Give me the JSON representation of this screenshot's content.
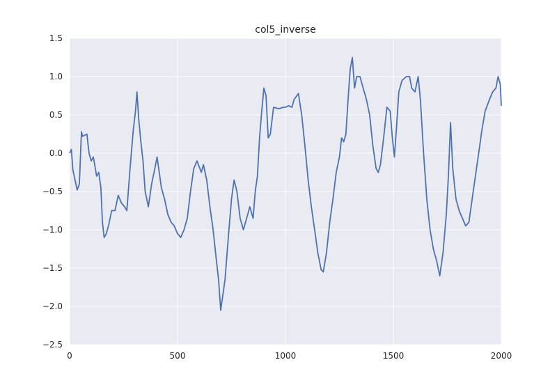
{
  "chart_data": {
    "type": "line",
    "title": "col5_inverse",
    "xlabel": "",
    "ylabel": "",
    "xlim": [
      0,
      2000
    ],
    "ylim": [
      -2.5,
      1.5
    ],
    "xticks": [
      0,
      500,
      1000,
      1500,
      2000
    ],
    "yticks": [
      -2.5,
      -2.0,
      -1.5,
      -1.0,
      -0.5,
      0.0,
      0.5,
      1.0,
      1.5
    ],
    "xtick_labels": [
      "0",
      "500",
      "1000",
      "1500",
      "2000"
    ],
    "ytick_labels": [
      "−2.5",
      "−2.0",
      "−1.5",
      "−1.0",
      "−0.5",
      "0.0",
      "0.5",
      "1.0",
      "1.5"
    ],
    "grid": true,
    "colors": {
      "background": "#eaeaf2",
      "grid": "#ffffff",
      "line": "#4c72b0",
      "text": "#262626"
    },
    "series": [
      {
        "name": "col5_inverse",
        "points": [
          [
            0,
            0.0
          ],
          [
            8,
            0.05
          ],
          [
            15,
            -0.22
          ],
          [
            25,
            -0.35
          ],
          [
            35,
            -0.48
          ],
          [
            45,
            -0.4
          ],
          [
            55,
            0.28
          ],
          [
            60,
            0.22
          ],
          [
            80,
            0.25
          ],
          [
            90,
            0.0
          ],
          [
            100,
            -0.1
          ],
          [
            110,
            -0.05
          ],
          [
            125,
            -0.3
          ],
          [
            135,
            -0.25
          ],
          [
            145,
            -0.45
          ],
          [
            152,
            -0.9
          ],
          [
            160,
            -1.1
          ],
          [
            170,
            -1.05
          ],
          [
            180,
            -0.95
          ],
          [
            195,
            -0.75
          ],
          [
            210,
            -0.75
          ],
          [
            225,
            -0.55
          ],
          [
            240,
            -0.65
          ],
          [
            255,
            -0.7
          ],
          [
            265,
            -0.75
          ],
          [
            280,
            -0.2
          ],
          [
            295,
            0.3
          ],
          [
            305,
            0.55
          ],
          [
            312,
            0.8
          ],
          [
            320,
            0.45
          ],
          [
            330,
            0.15
          ],
          [
            340,
            -0.1
          ],
          [
            350,
            -0.5
          ],
          [
            365,
            -0.7
          ],
          [
            380,
            -0.4
          ],
          [
            395,
            -0.2
          ],
          [
            405,
            -0.05
          ],
          [
            415,
            -0.25
          ],
          [
            425,
            -0.45
          ],
          [
            440,
            -0.6
          ],
          [
            455,
            -0.8
          ],
          [
            470,
            -0.9
          ],
          [
            485,
            -0.95
          ],
          [
            500,
            -1.05
          ],
          [
            515,
            -1.1
          ],
          [
            530,
            -1.0
          ],
          [
            545,
            -0.85
          ],
          [
            560,
            -0.5
          ],
          [
            575,
            -0.2
          ],
          [
            590,
            -0.1
          ],
          [
            610,
            -0.25
          ],
          [
            620,
            -0.15
          ],
          [
            635,
            -0.35
          ],
          [
            650,
            -0.7
          ],
          [
            665,
            -1.0
          ],
          [
            680,
            -1.4
          ],
          [
            690,
            -1.65
          ],
          [
            700,
            -2.05
          ],
          [
            710,
            -1.85
          ],
          [
            720,
            -1.65
          ],
          [
            735,
            -1.1
          ],
          [
            750,
            -0.6
          ],
          [
            762,
            -0.35
          ],
          [
            775,
            -0.5
          ],
          [
            790,
            -0.85
          ],
          [
            805,
            -1.0
          ],
          [
            820,
            -0.85
          ],
          [
            835,
            -0.7
          ],
          [
            850,
            -0.85
          ],
          [
            860,
            -0.5
          ],
          [
            870,
            -0.3
          ],
          [
            880,
            0.2
          ],
          [
            890,
            0.55
          ],
          [
            900,
            0.85
          ],
          [
            910,
            0.75
          ],
          [
            920,
            0.2
          ],
          [
            930,
            0.25
          ],
          [
            945,
            0.6
          ],
          [
            970,
            0.58
          ],
          [
            990,
            0.6
          ],
          [
            1000,
            0.6
          ],
          [
            1015,
            0.62
          ],
          [
            1030,
            0.6
          ],
          [
            1040,
            0.7
          ],
          [
            1060,
            0.78
          ],
          [
            1075,
            0.5
          ],
          [
            1090,
            0.1
          ],
          [
            1105,
            -0.35
          ],
          [
            1120,
            -0.7
          ],
          [
            1135,
            -1.0
          ],
          [
            1150,
            -1.3
          ],
          [
            1165,
            -1.52
          ],
          [
            1175,
            -1.55
          ],
          [
            1190,
            -1.3
          ],
          [
            1205,
            -0.9
          ],
          [
            1220,
            -0.6
          ],
          [
            1235,
            -0.25
          ],
          [
            1250,
            -0.05
          ],
          [
            1260,
            0.2
          ],
          [
            1270,
            0.15
          ],
          [
            1280,
            0.25
          ],
          [
            1290,
            0.7
          ],
          [
            1300,
            1.1
          ],
          [
            1310,
            1.25
          ],
          [
            1320,
            0.85
          ],
          [
            1330,
            1.0
          ],
          [
            1345,
            1.0
          ],
          [
            1360,
            0.85
          ],
          [
            1375,
            0.7
          ],
          [
            1390,
            0.5
          ],
          [
            1405,
            0.1
          ],
          [
            1420,
            -0.2
          ],
          [
            1430,
            -0.25
          ],
          [
            1440,
            -0.15
          ],
          [
            1455,
            0.2
          ],
          [
            1470,
            0.6
          ],
          [
            1485,
            0.55
          ],
          [
            1495,
            0.2
          ],
          [
            1505,
            -0.05
          ],
          [
            1515,
            0.35
          ],
          [
            1525,
            0.8
          ],
          [
            1540,
            0.95
          ],
          [
            1560,
            1.0
          ],
          [
            1575,
            1.0
          ],
          [
            1585,
            0.85
          ],
          [
            1600,
            0.8
          ],
          [
            1615,
            1.0
          ],
          [
            1625,
            0.7
          ],
          [
            1640,
            0.0
          ],
          [
            1655,
            -0.6
          ],
          [
            1670,
            -1.0
          ],
          [
            1685,
            -1.25
          ],
          [
            1700,
            -1.4
          ],
          [
            1715,
            -1.6
          ],
          [
            1730,
            -1.3
          ],
          [
            1745,
            -0.8
          ],
          [
            1755,
            -0.3
          ],
          [
            1765,
            0.4
          ],
          [
            1775,
            -0.2
          ],
          [
            1790,
            -0.6
          ],
          [
            1805,
            -0.75
          ],
          [
            1820,
            -0.85
          ],
          [
            1835,
            -0.95
          ],
          [
            1850,
            -0.9
          ],
          [
            1865,
            -0.6
          ],
          [
            1880,
            -0.3
          ],
          [
            1895,
            0.0
          ],
          [
            1910,
            0.3
          ],
          [
            1925,
            0.55
          ],
          [
            1945,
            0.7
          ],
          [
            1960,
            0.8
          ],
          [
            1975,
            0.85
          ],
          [
            1985,
            1.0
          ],
          [
            1995,
            0.9
          ],
          [
            2000,
            0.62
          ]
        ]
      }
    ]
  }
}
